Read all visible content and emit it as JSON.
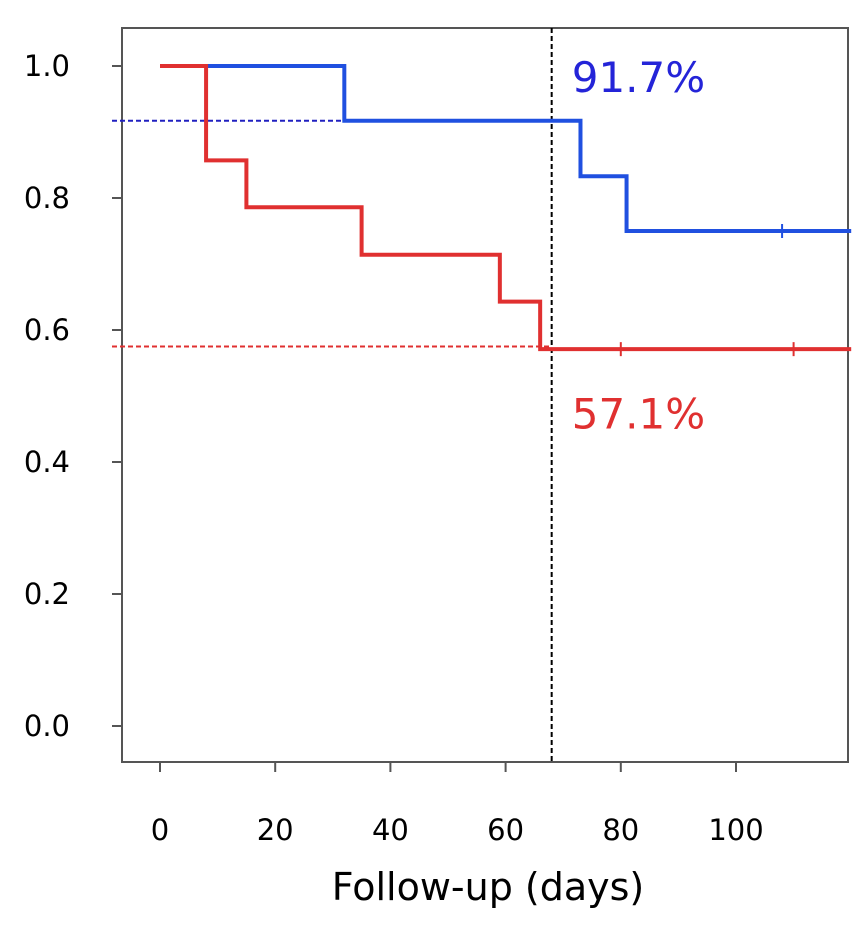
{
  "chart_data": {
    "type": "line",
    "subtype": "step (Kaplan-Meier survival curves)",
    "title": "",
    "xlabel": "Follow-up (days)",
    "ylabel": "",
    "xlim": [
      -7,
      120
    ],
    "ylim": [
      -0.03,
      1.07
    ],
    "x_ticks": [
      0,
      20,
      40,
      60,
      80,
      100
    ],
    "y_ticks": [
      0.0,
      0.2,
      0.4,
      0.6,
      0.8,
      1.0
    ],
    "x_tick_labels": [
      "0",
      "20",
      "40",
      "60",
      "80",
      "100"
    ],
    "y_tick_labels": [
      "0.0",
      "0.2",
      "0.4",
      "0.6",
      "0.8",
      "1.0"
    ],
    "grid": false,
    "legend": "none",
    "series": [
      {
        "color": "#2050e0",
        "steps": [
          {
            "x": 0,
            "y": 1.0
          },
          {
            "x": 32,
            "y": 0.917
          },
          {
            "x": 73,
            "y": 0.833
          },
          {
            "x": 81,
            "y": 0.75
          },
          {
            "x": 120,
            "y": 0.75
          }
        ],
        "censor_x": [
          108
        ]
      },
      {
        "color": "#e03030",
        "steps": [
          {
            "x": 0,
            "y": 1.0
          },
          {
            "x": 8,
            "y": 0.857
          },
          {
            "x": 15,
            "y": 0.786
          },
          {
            "x": 35,
            "y": 0.714
          },
          {
            "x": 59,
            "y": 0.643
          },
          {
            "x": 66,
            "y": 0.571
          },
          {
            "x": 120,
            "y": 0.571
          }
        ],
        "censor_x": [
          80,
          110
        ]
      }
    ],
    "reference_lines": [
      {
        "orientation": "vertical",
        "x": 68,
        "color": "#000000",
        "style": "dashed"
      },
      {
        "orientation": "horizontal",
        "y": 0.917,
        "color": "#2020c0",
        "style": "dashed",
        "x_end": 68
      },
      {
        "orientation": "horizontal",
        "y": 0.575,
        "color": "#e03030",
        "style": "dashed",
        "x_end": 68
      }
    ],
    "annotations": [
      {
        "text": "91.7%",
        "x": 72,
        "y": 1.0,
        "color": "#2424d8"
      },
      {
        "text": "57.1%",
        "x": 72,
        "y": 0.49,
        "color": "#e03030"
      }
    ]
  }
}
